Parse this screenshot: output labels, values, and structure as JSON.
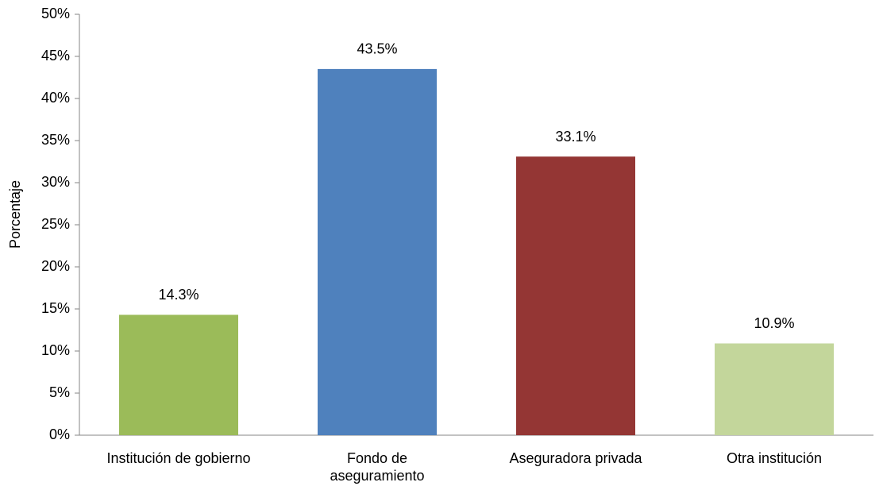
{
  "chart_data": {
    "type": "bar",
    "y_label": "Porcentaje",
    "categories": [
      "Institución de gobierno",
      "Fondo de aseguramiento",
      "Aseguradora privada",
      "Otra institución"
    ],
    "values": [
      14.3,
      43.5,
      33.1,
      10.9
    ],
    "value_labels": [
      "14.3%",
      "43.5%",
      "33.1%",
      "10.9%"
    ],
    "colors": [
      "#9bbb59",
      "#4f81bd",
      "#943634",
      "#c3d69b"
    ],
    "ylim": [
      0,
      50
    ],
    "yticks": [
      {
        "value": 0,
        "label": "0%"
      },
      {
        "value": 5,
        "label": "5%"
      },
      {
        "value": 10,
        "label": "10%"
      },
      {
        "value": 15,
        "label": "15%"
      },
      {
        "value": 20,
        "label": "20%"
      },
      {
        "value": 25,
        "label": "25%"
      },
      {
        "value": 30,
        "label": "30%"
      },
      {
        "value": 35,
        "label": "35%"
      },
      {
        "value": 40,
        "label": "40%"
      },
      {
        "value": 45,
        "label": "45%"
      },
      {
        "value": 50,
        "label": "50%"
      }
    ],
    "grid": false
  }
}
